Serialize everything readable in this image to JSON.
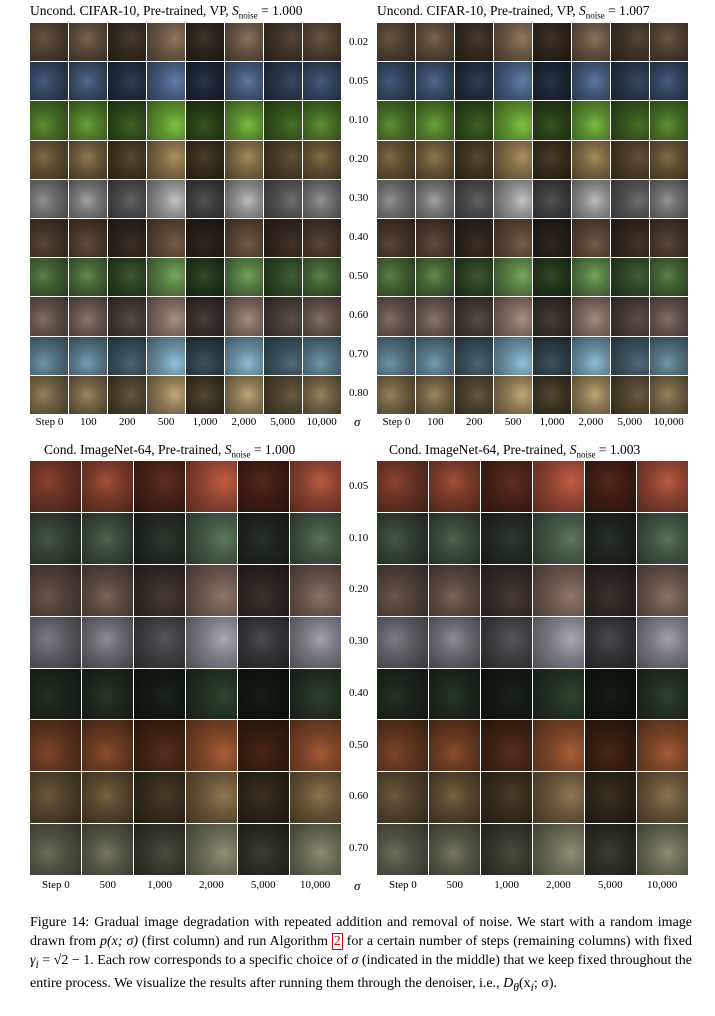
{
  "panels": [
    {
      "title_prefix": "Uncond. CIFAR-10, Pre-trained, VP,",
      "title_noise": "1.000",
      "step_labels": [
        "Step 0",
        "100",
        "200",
        "500",
        "1,000",
        "2,000",
        "5,000",
        "10,000"
      ],
      "palette": [
        [
          "#5a4a3a",
          "#3c4e6a",
          "#4f7a2a",
          "#6b5a3a",
          "#7a7a7a",
          "#4a3a2e",
          "#4a6a3a",
          "#6a5a52",
          "#5a7a8a",
          "#7a6a4a"
        ]
      ]
    },
    {
      "title_prefix": "Uncond. CIFAR-10, Pre-trained, VP,",
      "title_noise": "1.007",
      "step_labels": [
        "Step 0",
        "100",
        "200",
        "500",
        "1,000",
        "2,000",
        "5,000",
        "10,000"
      ],
      "palette": [
        [
          "#5a4a3a",
          "#3c4e6a",
          "#4f7a2a",
          "#6b5a3a",
          "#7a7a7a",
          "#4a3a2e",
          "#4a6a3a",
          "#6a5a52",
          "#5a7a8a",
          "#7a6a4a"
        ]
      ]
    },
    {
      "title_prefix": "Cond. ImageNet-64, Pre-trained,",
      "title_noise": "1.000",
      "step_labels": [
        "Step 0",
        "500",
        "1,000",
        "2,000",
        "5,000",
        "10,000"
      ],
      "palette": [
        [
          "#7a3a2a",
          "#3a4a3a",
          "#5a4a42",
          "#6a6a72",
          "#1e2a1e",
          "#6a3a22",
          "#5a4a32",
          "#5a5a4a"
        ]
      ]
    },
    {
      "title_prefix": "Cond. ImageNet-64, Pre-trained,",
      "title_noise": "1.003",
      "step_labels": [
        "Step 0",
        "500",
        "1,000",
        "2,000",
        "5,000",
        "10,000"
      ],
      "palette": [
        [
          "#7a3a2a",
          "#3a4a3a",
          "#5a4a42",
          "#6a6a72",
          "#1e2a1e",
          "#6a3a22",
          "#5a4a32",
          "#5a5a4a"
        ]
      ]
    }
  ],
  "sigma_top": [
    "0.02",
    "0.05",
    "0.10",
    "0.20",
    "0.30",
    "0.40",
    "0.50",
    "0.60",
    "0.70",
    "0.80"
  ],
  "sigma_bottom": [
    "0.05",
    "0.10",
    "0.20",
    "0.30",
    "0.40",
    "0.50",
    "0.60",
    "0.70"
  ],
  "sigma_symbol": "σ",
  "noise_symbol": "S",
  "noise_sub": "noise",
  "caption": {
    "part1": "Figure 14: Gradual image degradation with repeated addition and removal of noise. We start with a random image drawn from ",
    "math1": "p(x; σ)",
    "part2": " (first column) and run Algorithm ",
    "ref": "2",
    "part3": " for a certain number of steps (remaining columns) with fixed ",
    "math2": "γ",
    "math2_sub": "i",
    "math2_rest": " = √2 − 1",
    "part4": ". Each row corresponds to a specific choice of ",
    "math3": "σ",
    "part5": " (indicated in the middle) that we keep fixed throughout the entire process. We visualize the results after running them through the denoiser, i.e., ",
    "math4": "D",
    "math4_sub": "θ",
    "math4_rest": "(x",
    "math4_sub2": "i",
    "math4_end": "; σ)",
    "part6": "."
  }
}
